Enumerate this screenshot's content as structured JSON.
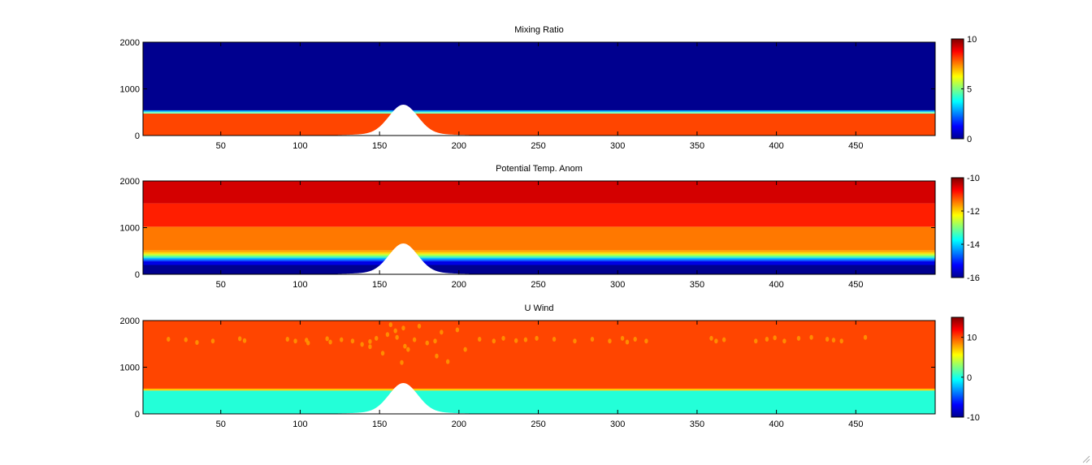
{
  "chart_data": [
    {
      "type": "heatmap",
      "title": "Mixing Ratio",
      "xlim": [
        1,
        500
      ],
      "ylim": [
        0,
        2000
      ],
      "x_ticks": [
        50,
        100,
        150,
        200,
        250,
        300,
        350,
        400,
        450
      ],
      "y_ticks": [
        0,
        1000,
        2000
      ],
      "colorbar": {
        "min": 0,
        "max": 10,
        "ticks": [
          0,
          5,
          10
        ]
      },
      "layers": [
        {
          "from": 0,
          "to": 470,
          "value": 8.5,
          "color": "#ff4500"
        },
        {
          "from": 470,
          "to": 510,
          "value": 5,
          "color": "#7dffbe"
        },
        {
          "from": 510,
          "to": 540,
          "value": 3,
          "color": "#00a2ff"
        },
        {
          "from": 540,
          "to": 2000,
          "value": 0,
          "color": "#00008f"
        }
      ],
      "terrain": {
        "peak_x": 165,
        "peak_height": 620,
        "base_height": 40,
        "width": 9
      },
      "grid": false
    },
    {
      "type": "heatmap",
      "title": "Potential Temp. Anom",
      "xlim": [
        1,
        500
      ],
      "ylim": [
        0,
        2000
      ],
      "x_ticks": [
        50,
        100,
        150,
        200,
        250,
        300,
        350,
        400,
        450
      ],
      "y_ticks": [
        0,
        1000,
        2000
      ],
      "colorbar": {
        "min": -16,
        "max": -10,
        "ticks": [
          -10,
          -12,
          -14,
          -16
        ]
      },
      "layers": [
        {
          "from": 0,
          "to": 200,
          "value": -16,
          "color": "#00008f"
        },
        {
          "from": 200,
          "to": 280,
          "value": -15.5,
          "color": "#0000e5"
        },
        {
          "from": 280,
          "to": 320,
          "value": -15,
          "color": "#0050ff"
        },
        {
          "from": 320,
          "to": 360,
          "value": -14,
          "color": "#00bfff"
        },
        {
          "from": 360,
          "to": 400,
          "value": -13.5,
          "color": "#5effa0"
        },
        {
          "from": 400,
          "to": 440,
          "value": -13,
          "color": "#c8ff37"
        },
        {
          "from": 440,
          "to": 480,
          "value": -12.3,
          "color": "#ffd200"
        },
        {
          "from": 480,
          "to": 520,
          "value": -11.8,
          "color": "#ff9a00"
        },
        {
          "from": 520,
          "to": 1020,
          "value": -11.4,
          "color": "#ff7800"
        },
        {
          "from": 1020,
          "to": 1520,
          "value": -10.8,
          "color": "#ff1e00"
        },
        {
          "from": 1520,
          "to": 2000,
          "value": -10.2,
          "color": "#d40000"
        }
      ],
      "terrain": {
        "peak_x": 165,
        "peak_height": 620,
        "base_height": 40,
        "width": 9
      },
      "grid": false
    },
    {
      "type": "heatmap",
      "title": "U Wind",
      "xlim": [
        1,
        500
      ],
      "ylim": [
        0,
        2000
      ],
      "x_ticks": [
        50,
        100,
        150,
        200,
        250,
        300,
        350,
        400,
        450
      ],
      "y_ticks": [
        0,
        1000,
        2000
      ],
      "colorbar": {
        "min": -10,
        "max": 15,
        "ticks": [
          10,
          0,
          -10
        ]
      },
      "layers": [
        {
          "from": 0,
          "to": 500,
          "value": 1,
          "color": "#23ffd8"
        },
        {
          "from": 500,
          "to": 540,
          "value": 9,
          "color": "#ffc800"
        },
        {
          "from": 540,
          "to": 2000,
          "value": 12,
          "color": "#ff4500"
        }
      ],
      "blobs": {
        "color": "#ff8c00",
        "points": [
          [
            17,
            1600
          ],
          [
            28,
            1590
          ],
          [
            35,
            1530
          ],
          [
            45,
            1560
          ],
          [
            62,
            1610
          ],
          [
            65,
            1570
          ],
          [
            92,
            1600
          ],
          [
            97,
            1560
          ],
          [
            104,
            1580
          ],
          [
            105,
            1520
          ],
          [
            117,
            1610
          ],
          [
            119,
            1540
          ],
          [
            126,
            1590
          ],
          [
            133,
            1560
          ],
          [
            139,
            1490
          ],
          [
            144,
            1440
          ],
          [
            144,
            1550
          ],
          [
            148,
            1620
          ],
          [
            152,
            1300
          ],
          [
            155,
            1700
          ],
          [
            157,
            1910
          ],
          [
            160,
            1780
          ],
          [
            161,
            1640
          ],
          [
            164,
            1100
          ],
          [
            165,
            1840
          ],
          [
            166,
            1450
          ],
          [
            168,
            1380
          ],
          [
            172,
            1590
          ],
          [
            175,
            1880
          ],
          [
            180,
            1520
          ],
          [
            185,
            1560
          ],
          [
            186,
            1240
          ],
          [
            189,
            1750
          ],
          [
            193,
            1120
          ],
          [
            199,
            1800
          ],
          [
            204,
            1380
          ],
          [
            213,
            1600
          ],
          [
            222,
            1560
          ],
          [
            228,
            1620
          ],
          [
            236,
            1570
          ],
          [
            242,
            1590
          ],
          [
            249,
            1620
          ],
          [
            260,
            1600
          ],
          [
            273,
            1560
          ],
          [
            284,
            1600
          ],
          [
            295,
            1560
          ],
          [
            303,
            1620
          ],
          [
            306,
            1540
          ],
          [
            311,
            1600
          ],
          [
            318,
            1560
          ],
          [
            359,
            1620
          ],
          [
            362,
            1560
          ],
          [
            367,
            1590
          ],
          [
            387,
            1560
          ],
          [
            394,
            1600
          ],
          [
            399,
            1630
          ],
          [
            405,
            1560
          ],
          [
            414,
            1620
          ],
          [
            422,
            1640
          ],
          [
            432,
            1600
          ],
          [
            436,
            1580
          ],
          [
            441,
            1560
          ],
          [
            456,
            1640
          ]
        ]
      },
      "terrain": {
        "peak_x": 165,
        "peak_height": 620,
        "base_height": 40,
        "width": 9
      },
      "grid": false
    }
  ],
  "jet_colormap": [
    "#00008f",
    "#0000ff",
    "#0080ff",
    "#00ffff",
    "#80ff80",
    "#ffff00",
    "#ff8000",
    "#ff0000",
    "#800000"
  ]
}
